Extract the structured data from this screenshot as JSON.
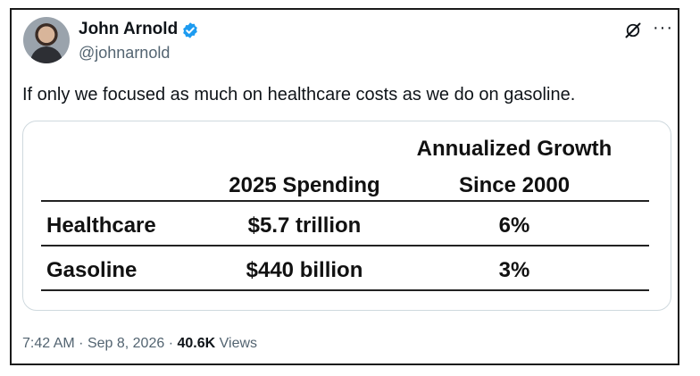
{
  "author": {
    "name": "John Arnold",
    "handle": "@johnarnold",
    "verified": true,
    "verified_color": "#1d9bf0"
  },
  "icons": {
    "verified": "verified-badge-icon",
    "grok": "grok-icon",
    "more": "more-options-icon"
  },
  "tweet": {
    "text": "If only we focused as much on healthcare costs as we do on gasoline."
  },
  "table": {
    "headers": {
      "spending": "2025 Spending",
      "growth_line1": "Annualized Growth",
      "growth_line2": "Since 2000"
    },
    "rows": [
      {
        "label": "Healthcare",
        "spending": "$5.7 trillion",
        "growth": "6%"
      },
      {
        "label": "Gasoline",
        "spending": "$440 billion",
        "growth": "3%"
      }
    ]
  },
  "meta": {
    "time": "7:42 AM",
    "separator": "·",
    "date": "Sep 8, 2026",
    "views_count": "40.6K",
    "views_label": "Views"
  }
}
